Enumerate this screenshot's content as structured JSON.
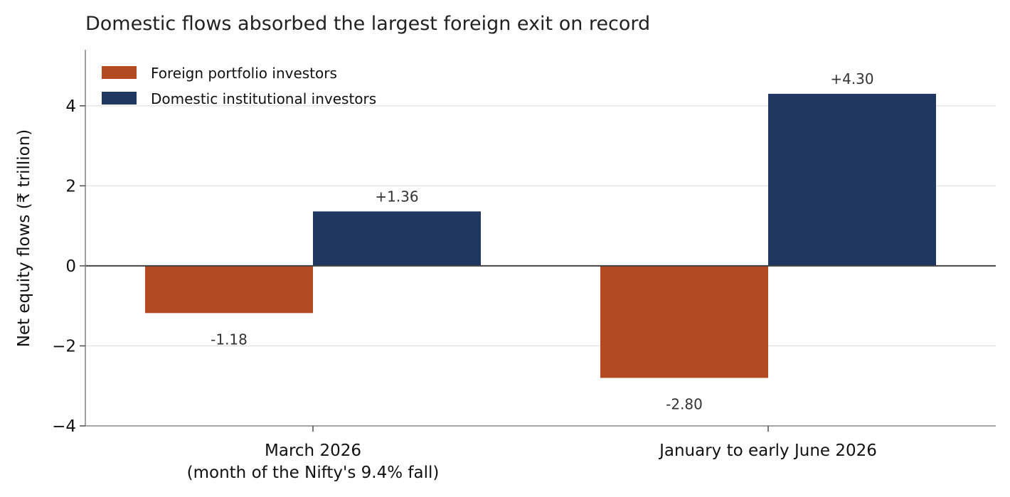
{
  "chart_data": {
    "type": "bar",
    "title": "Domestic flows absorbed the largest foreign exit on record",
    "ylabel": "Net equity flows (₹ trillion)",
    "xlabel": "",
    "ylim": [
      -4,
      5.4
    ],
    "yticks": [
      -4,
      -2,
      0,
      2,
      4
    ],
    "ytick_labels": [
      "−4",
      "−2",
      "0",
      "2",
      "4"
    ],
    "categories": [
      [
        "March 2026",
        "(month of the Nifty's 9.4% fall)"
      ],
      [
        "January to early June 2026"
      ]
    ],
    "series": [
      {
        "name": "Foreign portfolio investors",
        "color": "#b34a21",
        "values": [
          -1.18,
          -2.8
        ],
        "labels": [
          "-1.18",
          "-2.80"
        ]
      },
      {
        "name": "Domestic institutional investors",
        "color": "#1f3761",
        "values": [
          1.36,
          4.3
        ],
        "labels": [
          "+1.36",
          "+4.30"
        ]
      }
    ],
    "grid": "horizontal",
    "legend_position": "top-left",
    "zero_line": true
  }
}
